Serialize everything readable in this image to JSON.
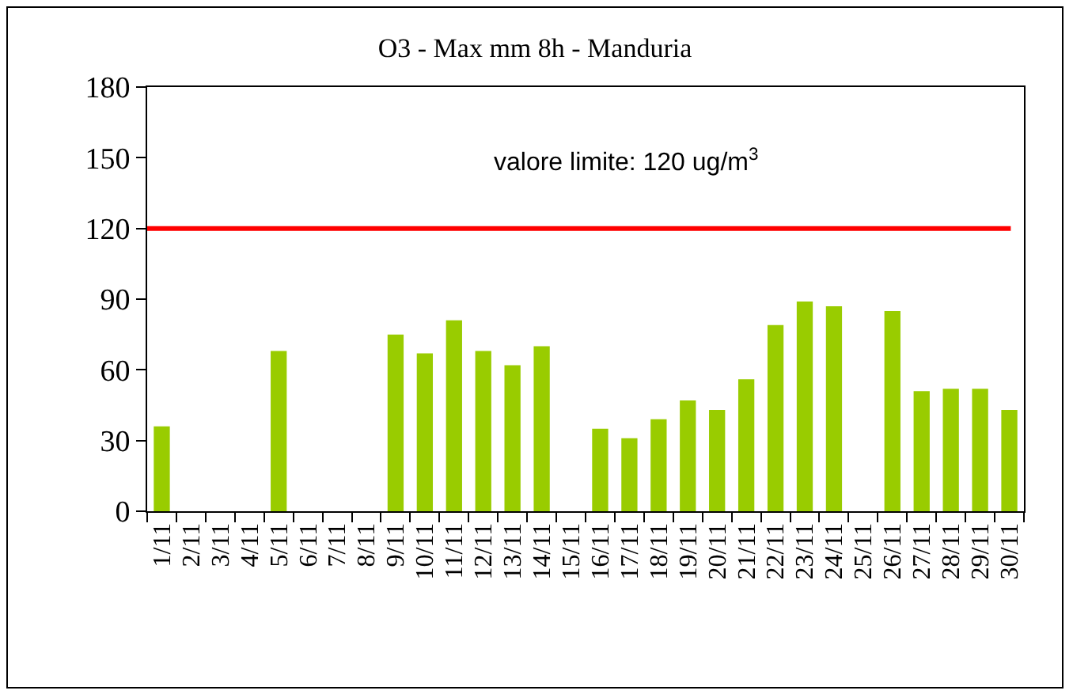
{
  "chart_data": {
    "type": "bar",
    "title": "O3 - Max mm 8h - Manduria",
    "categories": [
      "1/11",
      "2/11",
      "3/11",
      "4/11",
      "5/11",
      "6/11",
      "7/11",
      "8/11",
      "9/11",
      "10/11",
      "11/11",
      "12/11",
      "13/11",
      "14/11",
      "15/11",
      "16/11",
      "17/11",
      "18/11",
      "19/11",
      "20/11",
      "21/11",
      "22/11",
      "23/11",
      "24/11",
      "25/11",
      "26/11",
      "27/11",
      "28/11",
      "29/11",
      "30/11"
    ],
    "values": [
      36,
      0,
      0,
      0,
      68,
      0,
      0,
      0,
      75,
      67,
      81,
      68,
      62,
      70,
      0,
      35,
      31,
      39,
      47,
      43,
      56,
      79,
      89,
      87,
      0,
      85,
      51,
      52,
      52,
      43
    ],
    "color": "#99cc00",
    "ylim": [
      0,
      180
    ],
    "yticks": [
      0,
      30,
      60,
      90,
      120,
      150,
      180
    ],
    "grid": false,
    "ref_lines": [
      {
        "axis": "y",
        "value": 120,
        "label": "valore limite: 120 ug/m$^{3}$",
        "color": "#ff0000"
      }
    ]
  }
}
